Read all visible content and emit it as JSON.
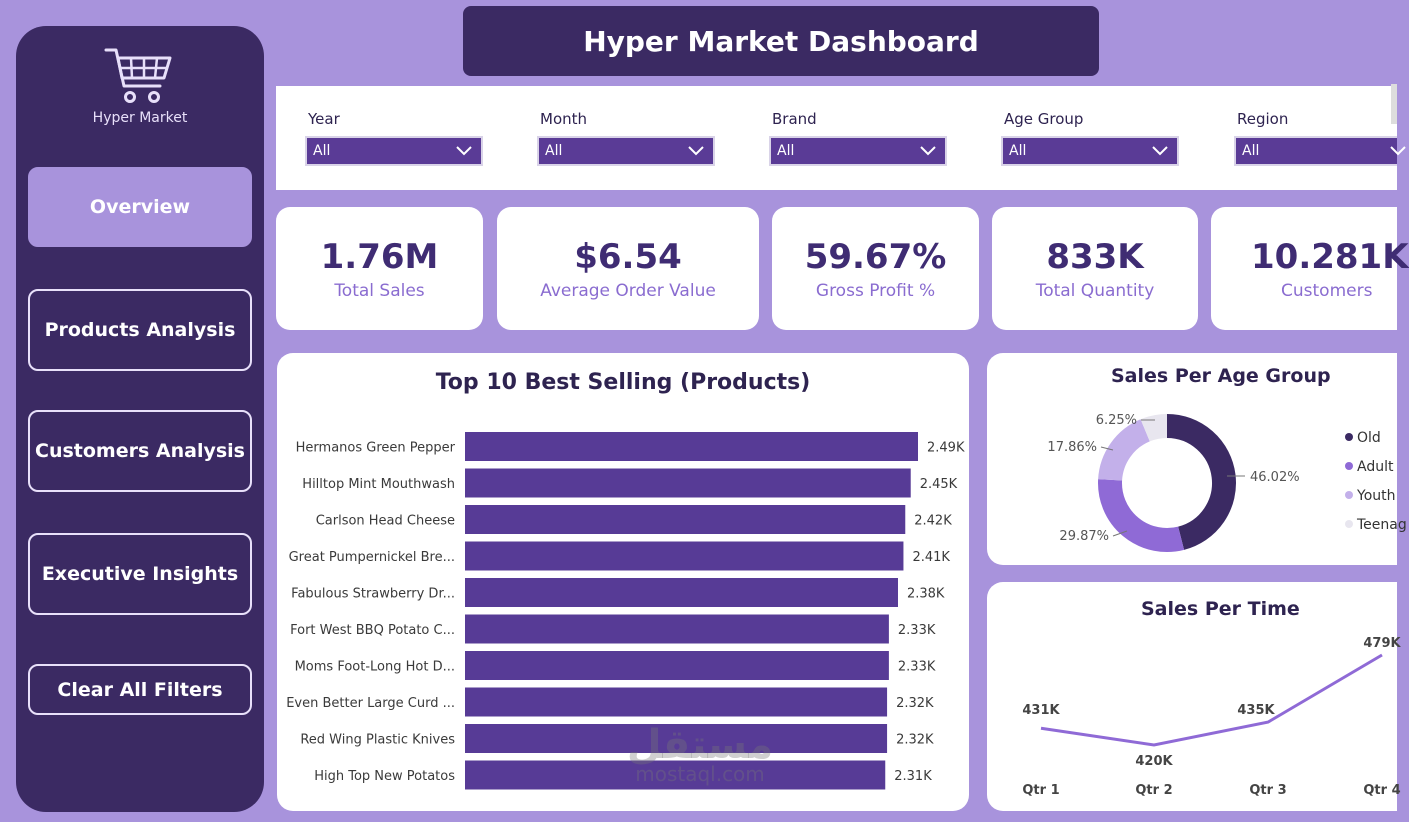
{
  "app": {
    "name": "Hyper Market",
    "title": "Hyper Market Dashboard"
  },
  "nav": [
    {
      "label": "Overview",
      "active": true
    },
    {
      "label": "Products Analysis",
      "active": false
    },
    {
      "label": "Customers Analysis",
      "active": false
    },
    {
      "label": "Executive Insights",
      "active": false
    },
    {
      "label": "Clear All Filters",
      "active": false
    }
  ],
  "filters": [
    {
      "label": "Year",
      "value": "All"
    },
    {
      "label": "Month",
      "value": "All"
    },
    {
      "label": "Brand",
      "value": "All"
    },
    {
      "label": "Age Group",
      "value": "All"
    },
    {
      "label": "Region",
      "value": "All"
    }
  ],
  "kpis": [
    {
      "value": "1.76M",
      "label": "Total Sales"
    },
    {
      "value": "$6.54",
      "label": "Average Order Value"
    },
    {
      "value": "59.67%",
      "label": "Gross Profit %"
    },
    {
      "value": "833K",
      "label": "Total Quantity"
    },
    {
      "value": "10.281K",
      "label": "Customers"
    }
  ],
  "colors": {
    "accent": "#5a3b96",
    "sidebar": "#3b2a63",
    "background": "#a893dc"
  },
  "watermark": {
    "arabic": "مستقل",
    "latin": "mostaql.com"
  },
  "chart_data": [
    {
      "type": "bar",
      "orientation": "horizontal",
      "title": "Top 10 Best Selling (Products)",
      "categories": [
        "Hermanos Green Pepper",
        "Hilltop Mint Mouthwash",
        "Carlson Head Cheese",
        "Great Pumpernickel Bre...",
        "Fabulous Strawberry Dr...",
        "Fort West BBQ Potato C...",
        "Moms Foot-Long Hot D...",
        "Even Better Large Curd ...",
        "Red Wing Plastic Knives",
        "High Top New Potatos"
      ],
      "values": [
        2.49,
        2.45,
        2.42,
        2.41,
        2.38,
        2.33,
        2.33,
        2.32,
        2.32,
        2.31
      ],
      "value_labels": [
        "2.49K",
        "2.45K",
        "2.42K",
        "2.41K",
        "2.38K",
        "2.33K",
        "2.33K",
        "2.32K",
        "2.32K",
        "2.31K"
      ],
      "unit": "K",
      "xlim": [
        0,
        2.49
      ],
      "color": "#573b96"
    },
    {
      "type": "pie",
      "subtype": "donut",
      "title": "Sales Per Age Group",
      "categories": [
        "Old",
        "Adult",
        "Youth",
        "Teenag"
      ],
      "values": [
        46.02,
        29.87,
        17.86,
        6.25
      ],
      "value_labels": [
        "46.02%",
        "29.87%",
        "17.86%",
        "6.25%"
      ],
      "colors": [
        "#3b2a63",
        "#8f6ad6",
        "#c3b0ea",
        "#e8e6ef"
      ],
      "legend": "right"
    },
    {
      "type": "line",
      "title": "Sales Per Time",
      "categories": [
        "Qtr 1",
        "Qtr 2",
        "Qtr 3",
        "Qtr 4"
      ],
      "values": [
        431,
        420,
        435,
        479
      ],
      "value_labels": [
        "431K",
        "420K",
        "435K",
        "479K"
      ],
      "unit": "K",
      "color": "#8f6ad6"
    }
  ]
}
